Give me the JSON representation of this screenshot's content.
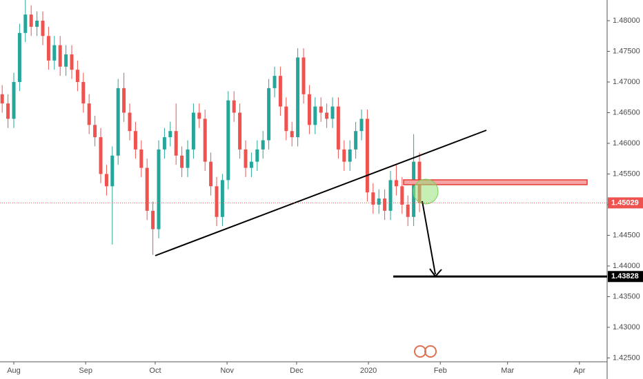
{
  "chart_data": {
    "type": "candlestick",
    "up_color": "#26a69a",
    "down_color": "#ef5350",
    "x": [
      -5,
      -2.5,
      0,
      2.5,
      5,
      7.5,
      10,
      12.5,
      15,
      17.5,
      20,
      22.5,
      25,
      27.5,
      30,
      32.5,
      35,
      37.5,
      40,
      42.5,
      45,
      47.5,
      50,
      52.5,
      55,
      57.5,
      60,
      62.5,
      65,
      67.5,
      70,
      72.5,
      75,
      77.5,
      80,
      82.5,
      85,
      87.5,
      90,
      92.5,
      95,
      97.5,
      100,
      102.5,
      105,
      107.5,
      110,
      112.5,
      115,
      117.5,
      120,
      122.5,
      125,
      127.5,
      130,
      132.5,
      135,
      137.5,
      140,
      142.5,
      145,
      147.5,
      150,
      152.5,
      155,
      157.5,
      160,
      162.5,
      165,
      167.5,
      170,
      172.5,
      175
    ],
    "open": [
      1.468,
      1.4665,
      1.464,
      1.47,
      1.478,
      1.481,
      1.479,
      1.48,
      1.4775,
      1.4735,
      1.476,
      1.4725,
      1.4745,
      1.472,
      1.47,
      1.4665,
      1.463,
      1.461,
      1.455,
      1.453,
      1.458,
      1.469,
      1.465,
      1.462,
      1.459,
      1.456,
      1.449,
      1.446,
      1.459,
      1.461,
      1.462,
      1.458,
      1.456,
      1.459,
      1.465,
      1.464,
      1.457,
      1.453,
      1.448,
      1.454,
      1.467,
      1.465,
      1.459,
      1.456,
      1.457,
      1.459,
      1.4605,
      1.469,
      1.471,
      1.466,
      1.462,
      1.461,
      1.474,
      1.468,
      1.463,
      1.466,
      1.465,
      1.464,
      1.466,
      1.459,
      1.457,
      1.459,
      1.462,
      1.464,
      1.452,
      1.45,
      1.451,
      1.449,
      1.454,
      1.453,
      1.45,
      1.448,
      1.457
    ],
    "high": [
      1.4695,
      1.468,
      1.4715,
      1.4795,
      1.4835,
      1.4825,
      1.4815,
      1.4815,
      1.479,
      1.4775,
      1.4775,
      1.476,
      1.476,
      1.4735,
      1.4715,
      1.468,
      1.4645,
      1.4625,
      1.4565,
      1.4595,
      1.4705,
      1.4715,
      1.4665,
      1.4635,
      1.4605,
      1.4575,
      1.4505,
      1.4605,
      1.4625,
      1.4635,
      1.4665,
      1.4595,
      1.4605,
      1.4665,
      1.4665,
      1.4655,
      1.4585,
      1.4545,
      1.455,
      1.4685,
      1.4685,
      1.4665,
      1.4605,
      1.4585,
      1.4605,
      1.462,
      1.4705,
      1.4725,
      1.4725,
      1.4675,
      1.4635,
      1.4755,
      1.4755,
      1.4695,
      1.4675,
      1.4675,
      1.4665,
      1.4675,
      1.4675,
      1.4605,
      1.4605,
      1.4635,
      1.4655,
      1.4655,
      1.4535,
      1.4525,
      1.4525,
      1.4555,
      1.4565,
      1.4545,
      1.4515,
      1.4615,
      1.4585
    ],
    "low": [
      1.465,
      1.4625,
      1.4625,
      1.4685,
      1.4765,
      1.4775,
      1.4775,
      1.476,
      1.472,
      1.472,
      1.471,
      1.471,
      1.4705,
      1.4685,
      1.465,
      1.4615,
      1.4595,
      1.4535,
      1.4515,
      1.4435,
      1.4565,
      1.4635,
      1.4605,
      1.4575,
      1.4545,
      1.4475,
      1.4418,
      1.4445,
      1.4575,
      1.4595,
      1.4565,
      1.4545,
      1.4545,
      1.4575,
      1.4625,
      1.4555,
      1.4515,
      1.4465,
      1.4465,
      1.4525,
      1.4635,
      1.4575,
      1.4545,
      1.4545,
      1.4555,
      1.4575,
      1.459,
      1.4675,
      1.4645,
      1.4605,
      1.4595,
      1.4595,
      1.4665,
      1.4615,
      1.4615,
      1.4635,
      1.4625,
      1.4625,
      1.4575,
      1.4555,
      1.4555,
      1.4575,
      1.4605,
      1.4505,
      1.4485,
      1.4485,
      1.4475,
      1.4475,
      1.4515,
      1.4485,
      1.4465,
      1.4465,
      1.4488
    ],
    "close": [
      1.4665,
      1.464,
      1.47,
      1.478,
      1.481,
      1.479,
      1.48,
      1.4775,
      1.4735,
      1.476,
      1.4725,
      1.4745,
      1.472,
      1.47,
      1.4665,
      1.463,
      1.461,
      1.455,
      1.453,
      1.458,
      1.469,
      1.465,
      1.462,
      1.459,
      1.456,
      1.449,
      1.446,
      1.459,
      1.461,
      1.462,
      1.458,
      1.456,
      1.459,
      1.465,
      1.464,
      1.457,
      1.453,
      1.448,
      1.454,
      1.467,
      1.465,
      1.459,
      1.456,
      1.457,
      1.459,
      1.4605,
      1.469,
      1.471,
      1.466,
      1.462,
      1.461,
      1.474,
      1.468,
      1.463,
      1.466,
      1.465,
      1.464,
      1.466,
      1.459,
      1.457,
      1.459,
      1.462,
      1.464,
      1.452,
      1.45,
      1.451,
      1.449,
      1.454,
      1.453,
      1.45,
      1.448,
      1.457,
      1.4503
    ],
    "xlim": [
      -5.95,
      255.95
    ],
    "xticks": [
      {
        "value": 0,
        "label": "Aug"
      },
      {
        "value": 31,
        "label": "Sep"
      },
      {
        "value": 61,
        "label": "Oct"
      },
      {
        "value": 92,
        "label": "Nov"
      },
      {
        "value": 122,
        "label": "Dec"
      },
      {
        "value": 153,
        "label": "2020"
      },
      {
        "value": 184,
        "label": "Feb"
      },
      {
        "value": 213,
        "label": "Mar"
      },
      {
        "value": 244,
        "label": "Apr"
      }
    ],
    "ylim": [
      1.42438,
      1.48337
    ],
    "yticks": [
      {
        "value": 1.425,
        "label": "1.42500"
      },
      {
        "value": 1.43,
        "label": "1.43000"
      },
      {
        "value": 1.435,
        "label": "1.43500"
      },
      {
        "value": 1.44,
        "label": "1.44000"
      },
      {
        "value": 1.445,
        "label": "1.44500"
      },
      {
        "value": 1.45,
        "label": "1.45000"
      },
      {
        "value": 1.455,
        "label": "1.45500"
      },
      {
        "value": 1.46,
        "label": "1.46000"
      },
      {
        "value": 1.465,
        "label": "1.46500"
      },
      {
        "value": 1.47,
        "label": "1.47000"
      },
      {
        "value": 1.475,
        "label": "1.47500"
      },
      {
        "value": 1.48,
        "label": "1.48000"
      }
    ],
    "price_lines": [
      {
        "value": 1.45029,
        "color": "#ef5350",
        "style": "dotted"
      },
      {
        "value": 1.43828,
        "color": "#000000",
        "style": "solid"
      }
    ]
  }
}
